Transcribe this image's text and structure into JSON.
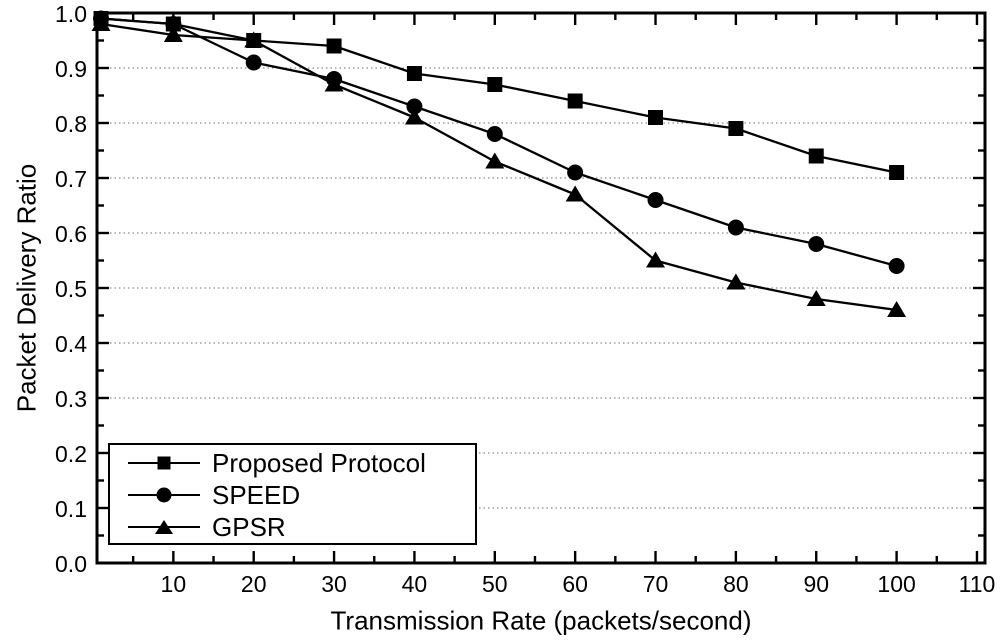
{
  "figure": {
    "background_color": "#ffffff",
    "frame_color": "#000000",
    "grid_color": "#8c8c8c"
  },
  "chart_data": {
    "type": "line",
    "title": "",
    "xlabel": "Transmission Rate (packets/second)",
    "ylabel": "Packet Delivery Ratio",
    "x_range": [
      0.5,
      111
    ],
    "y_range": [
      0,
      1
    ],
    "grid": "horizontal-dotted",
    "legend_position": "bottom-left",
    "x_axis": {
      "major_ticks": [
        10,
        20,
        30,
        40,
        50,
        60,
        70,
        80,
        90,
        100,
        110
      ],
      "tick_labels": [
        "10",
        "20",
        "30",
        "40",
        "50",
        "60",
        "70",
        "80",
        "90",
        "100",
        "110"
      ],
      "minor_ticks": [
        5,
        15,
        25,
        35,
        45,
        55,
        65,
        75,
        85,
        95,
        105
      ]
    },
    "y_axis": {
      "major_ticks": [
        0.0,
        0.1,
        0.2,
        0.3,
        0.4,
        0.5,
        0.6,
        0.7,
        0.8,
        0.9,
        1.0
      ],
      "tick_labels": [
        "0.0",
        "0.1",
        "0.2",
        "0.3",
        "0.4",
        "0.5",
        "0.6",
        "0.7",
        "0.8",
        "0.9",
        "1.0"
      ],
      "minor_ticks": [
        0.05,
        0.15,
        0.25,
        0.35,
        0.45,
        0.55,
        0.65,
        0.75,
        0.85,
        0.95
      ]
    },
    "x": [
      1,
      10,
      20,
      30,
      40,
      50,
      60,
      70,
      80,
      90,
      100
    ],
    "series": [
      {
        "name": "Proposed Protocol",
        "marker": "square",
        "color": "#000000",
        "values": [
          0.99,
          0.98,
          0.95,
          0.94,
          0.89,
          0.87,
          0.84,
          0.81,
          0.79,
          0.74,
          0.71
        ]
      },
      {
        "name": "SPEED",
        "marker": "circle",
        "color": "#000000",
        "values": [
          0.99,
          0.98,
          0.91,
          0.88,
          0.83,
          0.78,
          0.71,
          0.66,
          0.61,
          0.58,
          0.54
        ]
      },
      {
        "name": "GPSR",
        "marker": "triangle",
        "color": "#000000",
        "values": [
          0.98,
          0.96,
          0.95,
          0.87,
          0.81,
          0.73,
          0.67,
          0.55,
          0.51,
          0.48,
          0.46
        ]
      }
    ]
  }
}
